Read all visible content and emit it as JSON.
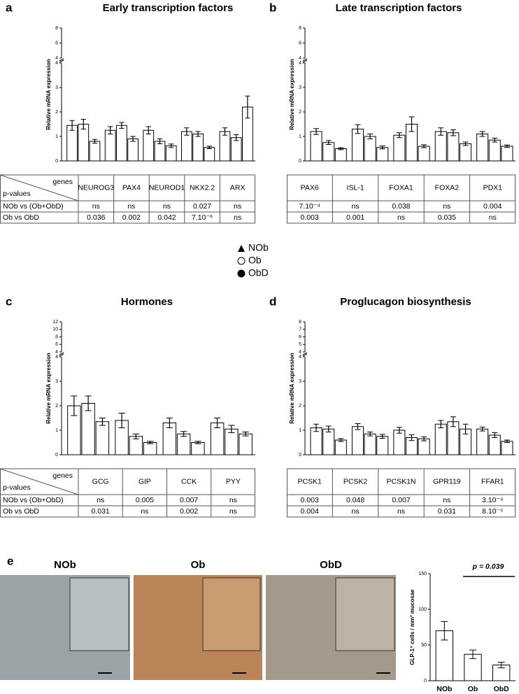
{
  "chart_data": [
    {
      "type": "bar",
      "panel": "a",
      "title": "Early transcription factors",
      "ylabel": "Relative mRNA expression",
      "categories": [
        "NEUROG3",
        "PAX4",
        "NEUROD1",
        "NKX2.2",
        "ARX"
      ],
      "series": [
        {
          "name": "NOb",
          "color": "#ffffff",
          "values": [
            1.45,
            1.25,
            1.25,
            1.2,
            1.2
          ],
          "errors": [
            0.2,
            0.15,
            0.15,
            0.15,
            0.15
          ]
        },
        {
          "name": "Ob",
          "color": "#ffffff",
          "values": [
            1.5,
            1.45,
            0.8,
            1.1,
            0.95
          ],
          "errors": [
            0.2,
            0.12,
            0.1,
            0.1,
            0.12
          ]
        },
        {
          "name": "ObD",
          "color": "#ffffff",
          "values": [
            0.8,
            0.9,
            0.62,
            0.55,
            2.2
          ],
          "errors": [
            0.08,
            0.1,
            0.07,
            0.05,
            0.45
          ]
        }
      ],
      "ylim": [
        0,
        4
      ],
      "yticks": [
        0,
        1,
        2,
        3,
        4
      ],
      "ylim_break": [
        4,
        8
      ],
      "yticks_break": [
        4,
        6,
        8
      ],
      "table": {
        "corner": [
          "genes",
          "p-values"
        ],
        "rows": [
          {
            "label": "NOb vs (Ob+ObD)",
            "cells": [
              "ns",
              "ns",
              "ns",
              "0.027",
              "ns"
            ]
          },
          {
            "label": "Ob vs ObD",
            "cells": [
              "0.036",
              "0.002",
              "0.042",
              "7.10⁻⁶",
              "ns"
            ]
          }
        ]
      }
    },
    {
      "type": "bar",
      "panel": "b",
      "title": "Late transcription factors",
      "ylabel": "Relative mRNA expression",
      "categories": [
        "PAX6",
        "ISL-1",
        "FOXA1",
        "FOXA2",
        "PDX1"
      ],
      "series": [
        {
          "name": "NOb",
          "color": "#ffffff",
          "values": [
            1.2,
            1.3,
            1.05,
            1.2,
            1.1
          ],
          "errors": [
            0.12,
            0.18,
            0.1,
            0.15,
            0.1
          ]
        },
        {
          "name": "Ob",
          "color": "#ffffff",
          "values": [
            0.75,
            1.0,
            1.5,
            1.15,
            0.85
          ],
          "errors": [
            0.08,
            0.1,
            0.3,
            0.12,
            0.08
          ]
        },
        {
          "name": "ObD",
          "color": "#ffffff",
          "values": [
            0.5,
            0.55,
            0.6,
            0.7,
            0.6
          ],
          "errors": [
            0.04,
            0.06,
            0.06,
            0.07,
            0.05
          ]
        }
      ],
      "ylim": [
        0,
        4
      ],
      "yticks": [
        0,
        1,
        2,
        3,
        4
      ],
      "ylim_break": [
        4,
        8
      ],
      "yticks_break": [
        4,
        6,
        8
      ],
      "table": {
        "rows": [
          {
            "cells": [
              "7.10⁻⁴",
              "ns",
              "0.038",
              "ns",
              "0.004"
            ]
          },
          {
            "cells": [
              "0.003",
              "0.001",
              "ns",
              "0.035",
              "ns"
            ]
          }
        ]
      }
    },
    {
      "type": "bar",
      "panel": "c",
      "title": "Hormones",
      "ylabel": "Relative mRNA expression",
      "categories": [
        "GCG",
        "GIP",
        "CCK",
        "PYY"
      ],
      "series": [
        {
          "name": "NOb",
          "color": "#ffffff",
          "values": [
            2.0,
            1.4,
            1.3,
            1.3
          ],
          "errors": [
            0.4,
            0.3,
            0.2,
            0.2
          ]
        },
        {
          "name": "Ob",
          "color": "#ffffff",
          "values": [
            2.1,
            0.75,
            0.85,
            1.05
          ],
          "errors": [
            0.3,
            0.1,
            0.1,
            0.15
          ]
        },
        {
          "name": "ObD",
          "color": "#ffffff",
          "values": [
            1.35,
            0.5,
            0.5,
            0.85
          ],
          "errors": [
            0.15,
            0.05,
            0.05,
            0.08
          ]
        }
      ],
      "ylim": [
        0,
        4
      ],
      "yticks": [
        0,
        1,
        2,
        3,
        4
      ],
      "ylim_break": [
        4,
        12
      ],
      "yticks_break": [
        4,
        6,
        8,
        10,
        12
      ],
      "table": {
        "corner": [
          "genes",
          "p-values"
        ],
        "rows": [
          {
            "label": "NOb vs (Ob+ObD)",
            "cells": [
              "ns",
              "0.005",
              "0.007",
              "ns"
            ]
          },
          {
            "label": "Ob vs ObD",
            "cells": [
              "0.031",
              "ns",
              "0.002",
              "ns"
            ]
          }
        ]
      }
    },
    {
      "type": "bar",
      "panel": "d",
      "title": "Proglucagon biosynthesis",
      "ylabel": "Relative mRNA expression",
      "categories": [
        "PCSK1",
        "PCSK2",
        "PCSK1N",
        "GPR119",
        "FFAR1"
      ],
      "series": [
        {
          "name": "NOb",
          "color": "#ffffff",
          "values": [
            1.1,
            1.15,
            1.0,
            1.25,
            1.05
          ],
          "errors": [
            0.15,
            0.12,
            0.12,
            0.15,
            0.08
          ]
        },
        {
          "name": "Ob",
          "color": "#ffffff",
          "values": [
            1.05,
            0.85,
            0.7,
            1.35,
            0.8
          ],
          "errors": [
            0.12,
            0.08,
            0.12,
            0.2,
            0.1
          ]
        },
        {
          "name": "ObD",
          "color": "#ffffff",
          "values": [
            0.6,
            0.75,
            0.65,
            1.05,
            0.55
          ],
          "errors": [
            0.06,
            0.08,
            0.08,
            0.2,
            0.05
          ]
        }
      ],
      "ylim": [
        0,
        4
      ],
      "yticks": [
        0,
        1,
        2,
        3,
        4
      ],
      "ylim_break": [
        4,
        8
      ],
      "yticks_break": [
        4,
        5,
        6,
        7,
        8
      ],
      "table": {
        "rows": [
          {
            "cells": [
              "0.003",
              "0.048",
              "0.007",
              "ns",
              "3.10⁻⁴"
            ]
          },
          {
            "cells": [
              "0.004",
              "ns",
              "ns",
              "0.031",
              "8.10⁻⁵"
            ]
          }
        ]
      }
    },
    {
      "type": "bar",
      "panel": "e",
      "ylabel": "GLP-1⁺ cells / mm² mucosae",
      "categories": [
        "NOb",
        "Ob",
        "ObD"
      ],
      "values": [
        70,
        37,
        22
      ],
      "errors": [
        13,
        6,
        4
      ],
      "color": "#ffffff",
      "ylim": [
        0,
        150
      ],
      "yticks": [
        0,
        50,
        100,
        150
      ],
      "annotation": "p = 0.039"
    }
  ],
  "micrographs": [
    "NOb",
    "Ob",
    "ObD"
  ]
}
